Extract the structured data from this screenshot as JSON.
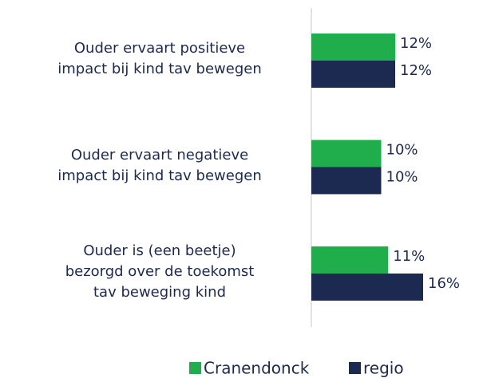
{
  "chart_data": {
    "type": "bar",
    "orientation": "horizontal",
    "categories": [
      "Ouder ervaart positieve\nimpact bij kind tav bewegen",
      "Ouder ervaart negatieve\nimpact bij kind tav bewegen",
      "Ouder is (een beetje)\nbezorgd over de toekomst\ntav beweging kind"
    ],
    "series": [
      {
        "name": "Cranendonck",
        "color": "#1fae4b",
        "values": [
          12,
          10,
          11
        ],
        "value_labels": [
          "12%",
          "10%",
          "11%"
        ]
      },
      {
        "name": "regio",
        "color": "#1c2a52",
        "values": [
          12,
          10,
          16
        ],
        "value_labels": [
          "12%",
          "10%",
          "16%"
        ]
      }
    ],
    "legend": "bottom"
  }
}
